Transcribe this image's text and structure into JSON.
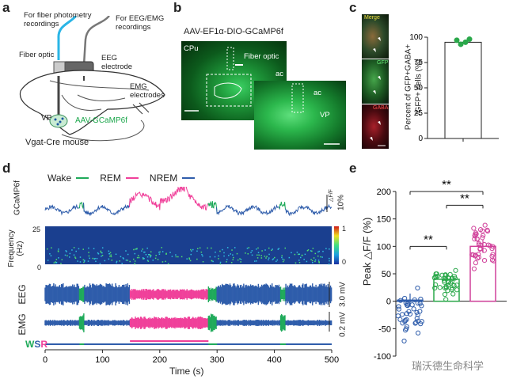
{
  "panels": {
    "a": {
      "letter": "a",
      "fiber_photometry": "For fiber photometry\nrecordings",
      "eeg_emg": "For EEG/EMG\nrecordings",
      "fiber_optic": "Fiber optic",
      "eeg_electrode": "EEG\nelectrode",
      "emg_electrodes": "EMG\nelectrodes",
      "vp": "VP",
      "virus": "AAV-GCaMP6f",
      "mouse": "Vgat-Cre mouse"
    },
    "b": {
      "letter": "b",
      "title": "AAV-EF1α-DIO-GCaMP6f",
      "cpu": "CPu",
      "fiber_optic": "Fiber optic",
      "ac1": "ac",
      "ac2": "ac",
      "vp": "VP"
    },
    "c": {
      "letter": "c",
      "merge": "Merge",
      "gfp": "GFP",
      "gaba": "GABA",
      "ylabel_line1": "Percent of GFP+GABA+",
      "ylabel_line2": "/GFP+ cells (%)",
      "yticks": [
        "0",
        "25",
        "50",
        "75",
        "100"
      ]
    },
    "d": {
      "letter": "d",
      "legend": [
        {
          "label": "Wake",
          "color": "#1faa5a"
        },
        {
          "label": "REM",
          "color": "#f0409a"
        },
        {
          "label": "NREM",
          "color": "#2f5dab"
        }
      ],
      "gcamp_label": "GCaMP6f",
      "dff_scale": "△F/F",
      "dff_pct": "10%",
      "freq_label": "Frequency\n(Hz)",
      "freq_ticks": [
        "25",
        "0"
      ],
      "colorbar_ticks": [
        "1",
        "0"
      ],
      "eeg_label": "EEG",
      "emg_label": "EMG",
      "eeg_scale": "3.0 mV",
      "emg_scale": "0.2 mV",
      "state_letters": [
        {
          "t": "W",
          "color": "#1faa5a"
        },
        {
          "t": "S",
          "color": "#2f5dab"
        },
        {
          "t": "R",
          "color": "#f0409a"
        }
      ],
      "xticks": [
        "0",
        "100",
        "200",
        "300",
        "400",
        "500"
      ],
      "xlabel": "Time (s)"
    },
    "e": {
      "letter": "e",
      "ylabel": "Peak △F/F (%)",
      "yticks": [
        "200",
        "150",
        "100",
        "50",
        "0",
        "-50",
        "-100"
      ],
      "sig1": "**",
      "sig2": "**",
      "sig3": "**"
    }
  },
  "watermark": "瑞沃德生命科学",
  "chart_data": [
    {
      "type": "bar",
      "panel": "c",
      "categories": [
        ""
      ],
      "values": [
        95
      ],
      "points": [
        97,
        93,
        95,
        98
      ],
      "ylabel": "Percent of GFP+GABA+ /GFP+ cells (%)",
      "ylim": [
        0,
        100
      ],
      "color": "#2aa84a"
    },
    {
      "type": "bar",
      "panel": "e",
      "categories": [
        "Wake",
        "NREM",
        "REM"
      ],
      "series": [
        {
          "name": "Wake",
          "value": 2,
          "color": "#2f5dab"
        },
        {
          "name": "NREM",
          "value": 40,
          "color": "#2aa84a"
        },
        {
          "name": "REM",
          "value": 100,
          "color": "#d0409a"
        }
      ],
      "ylabel": "Peak △F/F (%)",
      "ylim": [
        -100,
        200
      ],
      "significance": [
        "**",
        "**",
        "**"
      ]
    },
    {
      "type": "line",
      "panel": "d",
      "xlabel": "Time (s)",
      "xlim": [
        0,
        500
      ],
      "segments": [
        {
          "state": "Wake",
          "start": 60,
          "end": 68
        },
        {
          "state": "REM",
          "start": 148,
          "end": 285
        },
        {
          "state": "Wake",
          "start": 285,
          "end": 300
        },
        {
          "state": "Wake",
          "start": 410,
          "end": 420
        }
      ]
    }
  ]
}
